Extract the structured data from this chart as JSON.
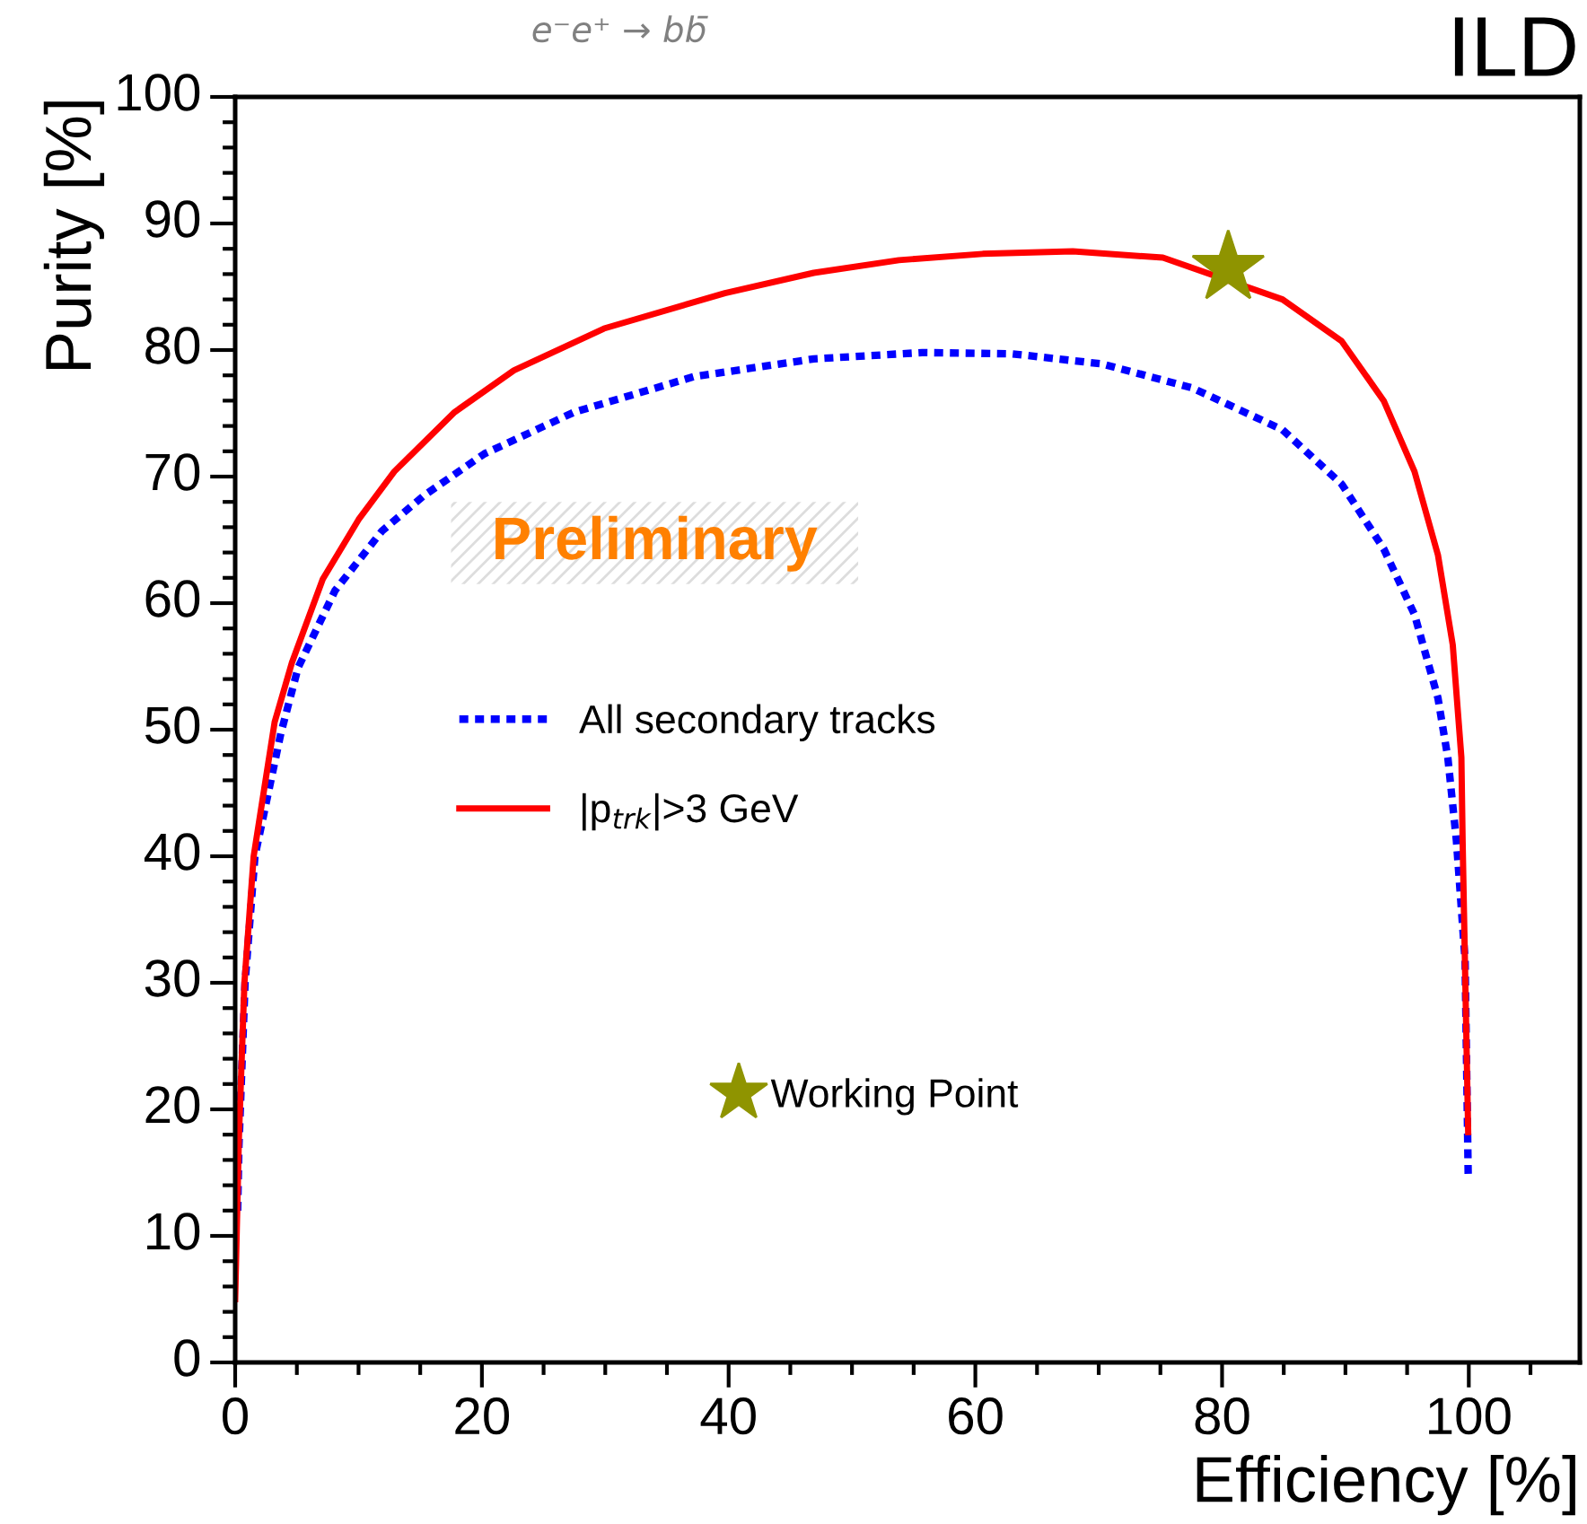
{
  "chart_data": {
    "type": "line",
    "title": "ILD",
    "subtitle": "e⁻e⁺ → bb̄",
    "xlabel": "Efficiency [%]",
    "ylabel": "Purity [%]",
    "annotations": [
      "Preliminary"
    ],
    "xlim": [
      0,
      109
    ],
    "ylim": [
      0,
      100
    ],
    "xticks": [
      0,
      20,
      40,
      60,
      80,
      100
    ],
    "yticks": [
      0,
      10,
      20,
      30,
      40,
      50,
      60,
      70,
      80,
      90,
      100
    ],
    "grid": false,
    "legend": "left",
    "series": [
      {
        "name": "All secondary tracks",
        "color": "#0000ff",
        "line_style": "dotted",
        "marker": "none",
        "x": [
          0.2,
          0.3,
          0.8,
          1.6,
          3.7,
          5.1,
          8.1,
          11.9,
          15.3,
          20.2,
          27.5,
          37.2,
          46.9,
          55.7,
          63,
          70.3,
          77.6,
          84.9,
          89.7,
          93.1,
          95.6,
          97.5,
          98.3,
          99,
          99.7,
          99.95
        ],
        "values": [
          12,
          17,
          30,
          40,
          49.7,
          54.9,
          61,
          65.7,
          68.5,
          71.8,
          75.1,
          77.9,
          79.3,
          79.8,
          79.7,
          78.9,
          77,
          73.7,
          69.4,
          64.3,
          59.1,
          52.5,
          47.8,
          41.2,
          31.8,
          14.9
        ]
      },
      {
        "name": "|p$_{trk}$|>3 GeV",
        "color": "#ff0000",
        "line_style": "solid",
        "marker": "none",
        "x": [
          0,
          0.3,
          0.75,
          1.5,
          3.2,
          4.6,
          7.1,
          10,
          12.9,
          17.8,
          22.6,
          29.9,
          39.7,
          46.9,
          53.8,
          60.6,
          67.9,
          75.2,
          84.9,
          89.7,
          93.1,
          95.6,
          97.5,
          98.7,
          99.4,
          99.5,
          99.95
        ],
        "values": [
          5,
          17.7,
          30,
          40,
          50.6,
          55.3,
          61.9,
          66.6,
          70.4,
          75.1,
          78.4,
          81.7,
          84.5,
          86.1,
          87.1,
          87.6,
          87.8,
          87.3,
          84,
          80.7,
          76,
          70.4,
          63.8,
          56.7,
          47.8,
          41.2,
          18.2
        ]
      },
      {
        "name": "Working Point",
        "type": "scatter",
        "color": "#8f9400",
        "marker": "star",
        "x": [
          80.5
        ],
        "values": [
          86.5
        ]
      }
    ]
  }
}
